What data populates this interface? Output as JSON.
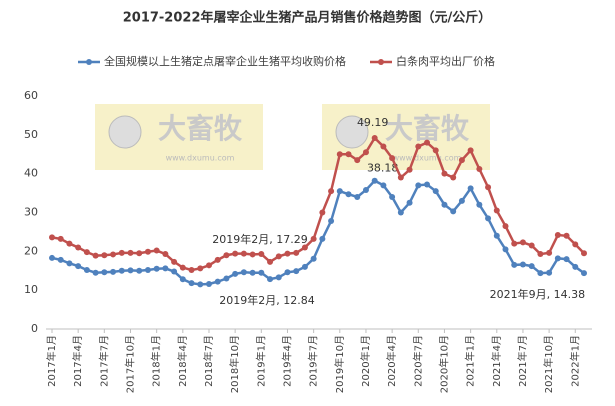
{
  "chart_data": {
    "type": "line",
    "title": "2017-2022年屠宰企业生猪产品月销售价格趋势图（元/公斤）",
    "categories": [
      "2017年1月",
      null,
      null,
      "2017年4月",
      null,
      null,
      "2017年7月",
      null,
      null,
      "2017年10月",
      null,
      null,
      "2018年1月",
      null,
      null,
      "2018年4月",
      null,
      null,
      "2018年7月",
      null,
      null,
      "2018年10月",
      null,
      null,
      "2019年1月",
      null,
      null,
      "2019年4月",
      null,
      null,
      "2019年7月",
      null,
      null,
      "2019年10月",
      null,
      null,
      "2020年1月",
      null,
      null,
      "2020年4月",
      null,
      null,
      "2020年7月",
      null,
      null,
      "2020年10月",
      null,
      null,
      "2021年1月",
      null,
      null,
      "2021年4月",
      null,
      null,
      "2021年7月",
      null,
      null,
      "2021年10月",
      null,
      null,
      "2022年1月",
      null
    ],
    "series": [
      {
        "name": "全国规模以上生猪定点屠宰企业生猪平均收购价格",
        "color": "#4f81bd",
        "values": [
          18.3,
          17.8,
          16.9,
          16.2,
          15.2,
          14.5,
          14.6,
          14.7,
          15.0,
          15.1,
          15.0,
          15.2,
          15.5,
          15.6,
          14.8,
          12.8,
          11.8,
          11.5,
          11.6,
          12.2,
          13.0,
          14.2,
          14.6,
          14.5,
          14.5,
          12.84,
          13.3,
          14.6,
          14.9,
          16.0,
          18.1,
          23.2,
          27.8,
          35.5,
          34.7,
          34.0,
          35.8,
          38.18,
          37.0,
          34.0,
          30.0,
          32.5,
          37.0,
          37.2,
          35.5,
          32.0,
          30.3,
          33.0,
          36.2,
          32.0,
          28.5,
          24.0,
          20.5,
          16.5,
          16.6,
          16.2,
          14.38,
          14.5,
          18.2,
          18.0,
          16.0,
          14.4
        ],
        "value_labels": [
          null,
          null,
          null,
          null,
          null,
          null,
          null,
          null,
          null,
          null,
          null,
          null,
          null,
          null,
          null,
          null,
          null,
          null,
          null,
          null,
          null,
          null,
          null,
          null,
          null,
          "2019年2月, 12.84",
          null,
          null,
          null,
          null,
          null,
          null,
          null,
          null,
          null,
          null,
          null,
          "38.18",
          null,
          null,
          null,
          null,
          null,
          null,
          null,
          null,
          null,
          null,
          null,
          null,
          null,
          null,
          null,
          null,
          null,
          null,
          "2021年9月, 14.38",
          null,
          null,
          null,
          null,
          null
        ]
      },
      {
        "name": "白条肉平均出厂价格",
        "color": "#c0504d",
        "values": [
          23.6,
          23.2,
          22.0,
          21.0,
          19.8,
          18.9,
          19.0,
          19.2,
          19.6,
          19.6,
          19.5,
          19.9,
          20.2,
          19.3,
          17.3,
          15.8,
          15.2,
          15.6,
          16.4,
          17.8,
          19.0,
          19.4,
          19.4,
          19.2,
          19.3,
          17.29,
          18.7,
          19.4,
          19.6,
          21.0,
          23.2,
          30.0,
          35.5,
          45.0,
          45.0,
          43.5,
          45.5,
          49.19,
          47.0,
          44.0,
          39.0,
          41.0,
          47.0,
          48.0,
          46.0,
          40.0,
          39.0,
          43.5,
          46.0,
          41.2,
          36.5,
          30.5,
          26.5,
          22.0,
          22.3,
          21.5,
          19.3,
          19.6,
          24.2,
          24.0,
          21.8,
          19.5
        ],
        "value_labels": [
          null,
          null,
          null,
          null,
          null,
          null,
          null,
          null,
          null,
          null,
          null,
          null,
          null,
          null,
          null,
          null,
          null,
          null,
          null,
          null,
          null,
          null,
          null,
          null,
          null,
          "2019年2月, 17.29",
          null,
          null,
          null,
          null,
          null,
          null,
          null,
          null,
          null,
          null,
          null,
          "49.19",
          null,
          null,
          null,
          null,
          null,
          null,
          null,
          null,
          null,
          null,
          null,
          null,
          null,
          null,
          null,
          null,
          null,
          null,
          null,
          null,
          null,
          null,
          null,
          null
        ]
      }
    ],
    "ylim": [
      0,
      60
    ],
    "yticks": [
      0,
      10,
      20,
      30,
      40,
      50,
      60
    ],
    "grid": false,
    "legend": "top",
    "watermark": {
      "name": "大畜牧",
      "url": "www.dxumu.com"
    }
  }
}
